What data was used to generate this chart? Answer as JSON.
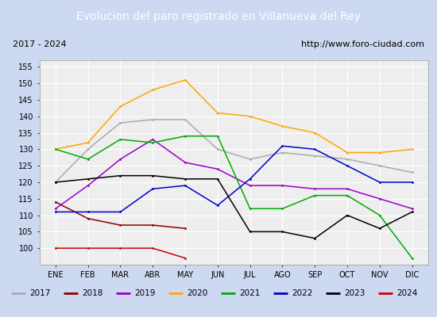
{
  "title": "Evolucion del paro registrado en Villanueva del Rey",
  "subtitle_left": "2017 - 2024",
  "subtitle_right": "http://www.foro-ciudad.com",
  "title_bg": "#4a90d9",
  "title_color": "white",
  "months": [
    "ENE",
    "FEB",
    "MAR",
    "ABR",
    "MAY",
    "JUN",
    "JUL",
    "AGO",
    "SEP",
    "OCT",
    "NOV",
    "DIC"
  ],
  "ylim": [
    95,
    157
  ],
  "yticks": [
    100,
    105,
    110,
    115,
    120,
    125,
    130,
    135,
    140,
    145,
    150,
    155
  ],
  "series": {
    "2017": {
      "color": "#aaaaaa",
      "values": [
        120,
        130,
        138,
        139,
        139,
        130,
        127,
        129,
        128,
        127,
        125,
        123
      ]
    },
    "2018": {
      "color": "#8b0000",
      "values": [
        114,
        109,
        107,
        107,
        106,
        null,
        null,
        null,
        null,
        null,
        null,
        null
      ]
    },
    "2019": {
      "color": "#9900cc",
      "values": [
        112,
        119,
        127,
        133,
        126,
        124,
        119,
        119,
        118,
        118,
        115,
        112
      ]
    },
    "2020": {
      "color": "#ffa500",
      "values": [
        130,
        132,
        143,
        148,
        151,
        141,
        140,
        137,
        135,
        129,
        129,
        130
      ]
    },
    "2021": {
      "color": "#00aa00",
      "values": [
        130,
        127,
        133,
        132,
        134,
        134,
        112,
        112,
        116,
        116,
        110,
        97
      ]
    },
    "2022": {
      "color": "#0000cc",
      "values": [
        111,
        111,
        111,
        118,
        119,
        113,
        121,
        131,
        130,
        125,
        120,
        120
      ]
    },
    "2023": {
      "color": "#000000",
      "values": [
        120,
        121,
        122,
        122,
        121,
        121,
        105,
        105,
        103,
        110,
        106,
        111
      ]
    },
    "2024": {
      "color": "#cc0000",
      "values": [
        100,
        100,
        100,
        100,
        97,
        null,
        null,
        null,
        null,
        null,
        null,
        null
      ]
    }
  },
  "legend_order": [
    "2017",
    "2018",
    "2019",
    "2020",
    "2021",
    "2022",
    "2023",
    "2024"
  ],
  "bg_plot": "#eeeeee",
  "bg_figure": "#ccd9f0",
  "grid_color": "white"
}
